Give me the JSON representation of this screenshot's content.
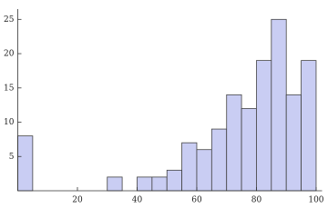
{
  "chart_data": {
    "type": "histogram",
    "bins": [
      0,
      5,
      10,
      15,
      20,
      25,
      30,
      35,
      40,
      45,
      50,
      55,
      60,
      65,
      70,
      75,
      80,
      85,
      90,
      95,
      100
    ],
    "values": [
      8,
      0,
      0,
      0,
      0,
      0,
      2,
      0,
      2,
      2,
      3,
      7,
      6,
      9,
      14,
      12,
      19,
      25,
      14,
      19
    ],
    "color": "#c9cdf3",
    "xlim": [
      0,
      102
    ],
    "ylim": [
      0,
      26.5
    ],
    "xticks": [
      20,
      40,
      60,
      80,
      100
    ],
    "yticks": [
      5,
      10,
      15,
      20,
      25
    ]
  }
}
